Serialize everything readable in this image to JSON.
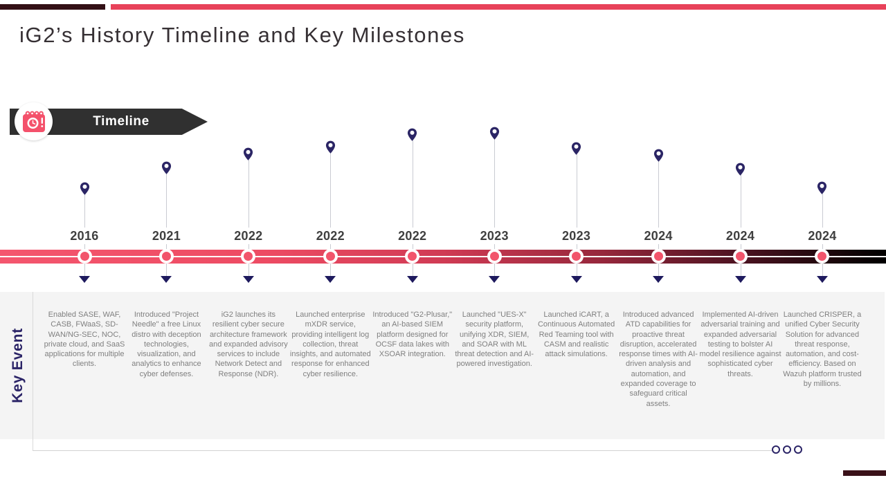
{
  "slide": {
    "title": "iG2’s History Timeline and Key Milestones"
  },
  "timeline_banner": {
    "label": "Timeline",
    "icon": "calendar-clock-icon"
  },
  "key_event_label": "Key Event",
  "milestones": [
    {
      "year": "2016",
      "description": "Enabled SASE, WAF, CASB, FWaaS, SD-WAN/NG-SEC, NOC, private cloud, and SaaS applications for multiple clients."
    },
    {
      "year": "2021",
      "description": "Introduced \"Project Needle\" a free Linux distro with deception technologies, visualization, and analytics to enhance cyber defenses."
    },
    {
      "year": "2022",
      "description": "iG2 launches its resilient cyber secure architecture framework and expanded advisory services to include Network Detect and Response (NDR)."
    },
    {
      "year": "2022",
      "description": "Launched enterprise mXDR service, providing intelligent log collection, threat insights, and automated response for enhanced cyber resilience."
    },
    {
      "year": "2022",
      "description": "Introduced \"G2-Plusar,\" an AI-based SIEM platform designed for OCSF data lakes with XSOAR integration."
    },
    {
      "year": "2023",
      "description": "Launched \"UES-X\" security platform, unifying XDR, SIEM, and SOAR with ML threat detection and AI-powered investigation."
    },
    {
      "year": "2023",
      "description": "Launched iCART, a Continuous Automated Red Teaming tool with CASM and realistic attack simulations."
    },
    {
      "year": "2024",
      "description": "Introduced advanced ATD capabilities for proactive threat disruption, accelerated response times with AI-driven analysis and automation, and expanded coverage to safeguard critical assets."
    },
    {
      "year": "2024",
      "description": "Implemented AI-driven adversarial training and expanded adversarial testing to bolster AI model resilience against sophisticated cyber threats."
    },
    {
      "year": "2024",
      "description": "Launched CRISPER, a unified Cyber Security Solution for advanced threat response, automation, and cost-efficiency. Based on Wazuh platform trusted by millions."
    }
  ],
  "pagination": {
    "dot_count": 3
  },
  "icons": {
    "calendar-clock-icon": "pink calendar with clock face",
    "map-pin-icon": "navy location pin marker",
    "down-arrow-icon": "navy triangle pointing down"
  },
  "colors": {
    "accent_red": "#E8425A",
    "dark_maroon": "#331016",
    "banner_dark": "#303030",
    "bar_gradient_start": "#F4566E",
    "bar_gradient_end": "#000000",
    "milestone_dot_pink": "#F2546B",
    "pin_navy": "#2B2565",
    "arrow_navy": "#1E1A5E",
    "key_event_navy": "#2B2467",
    "year_gray": "#3F3F3F",
    "body_text_gray": "#7F7F7F",
    "panel_gray": "#F4F4F4"
  }
}
